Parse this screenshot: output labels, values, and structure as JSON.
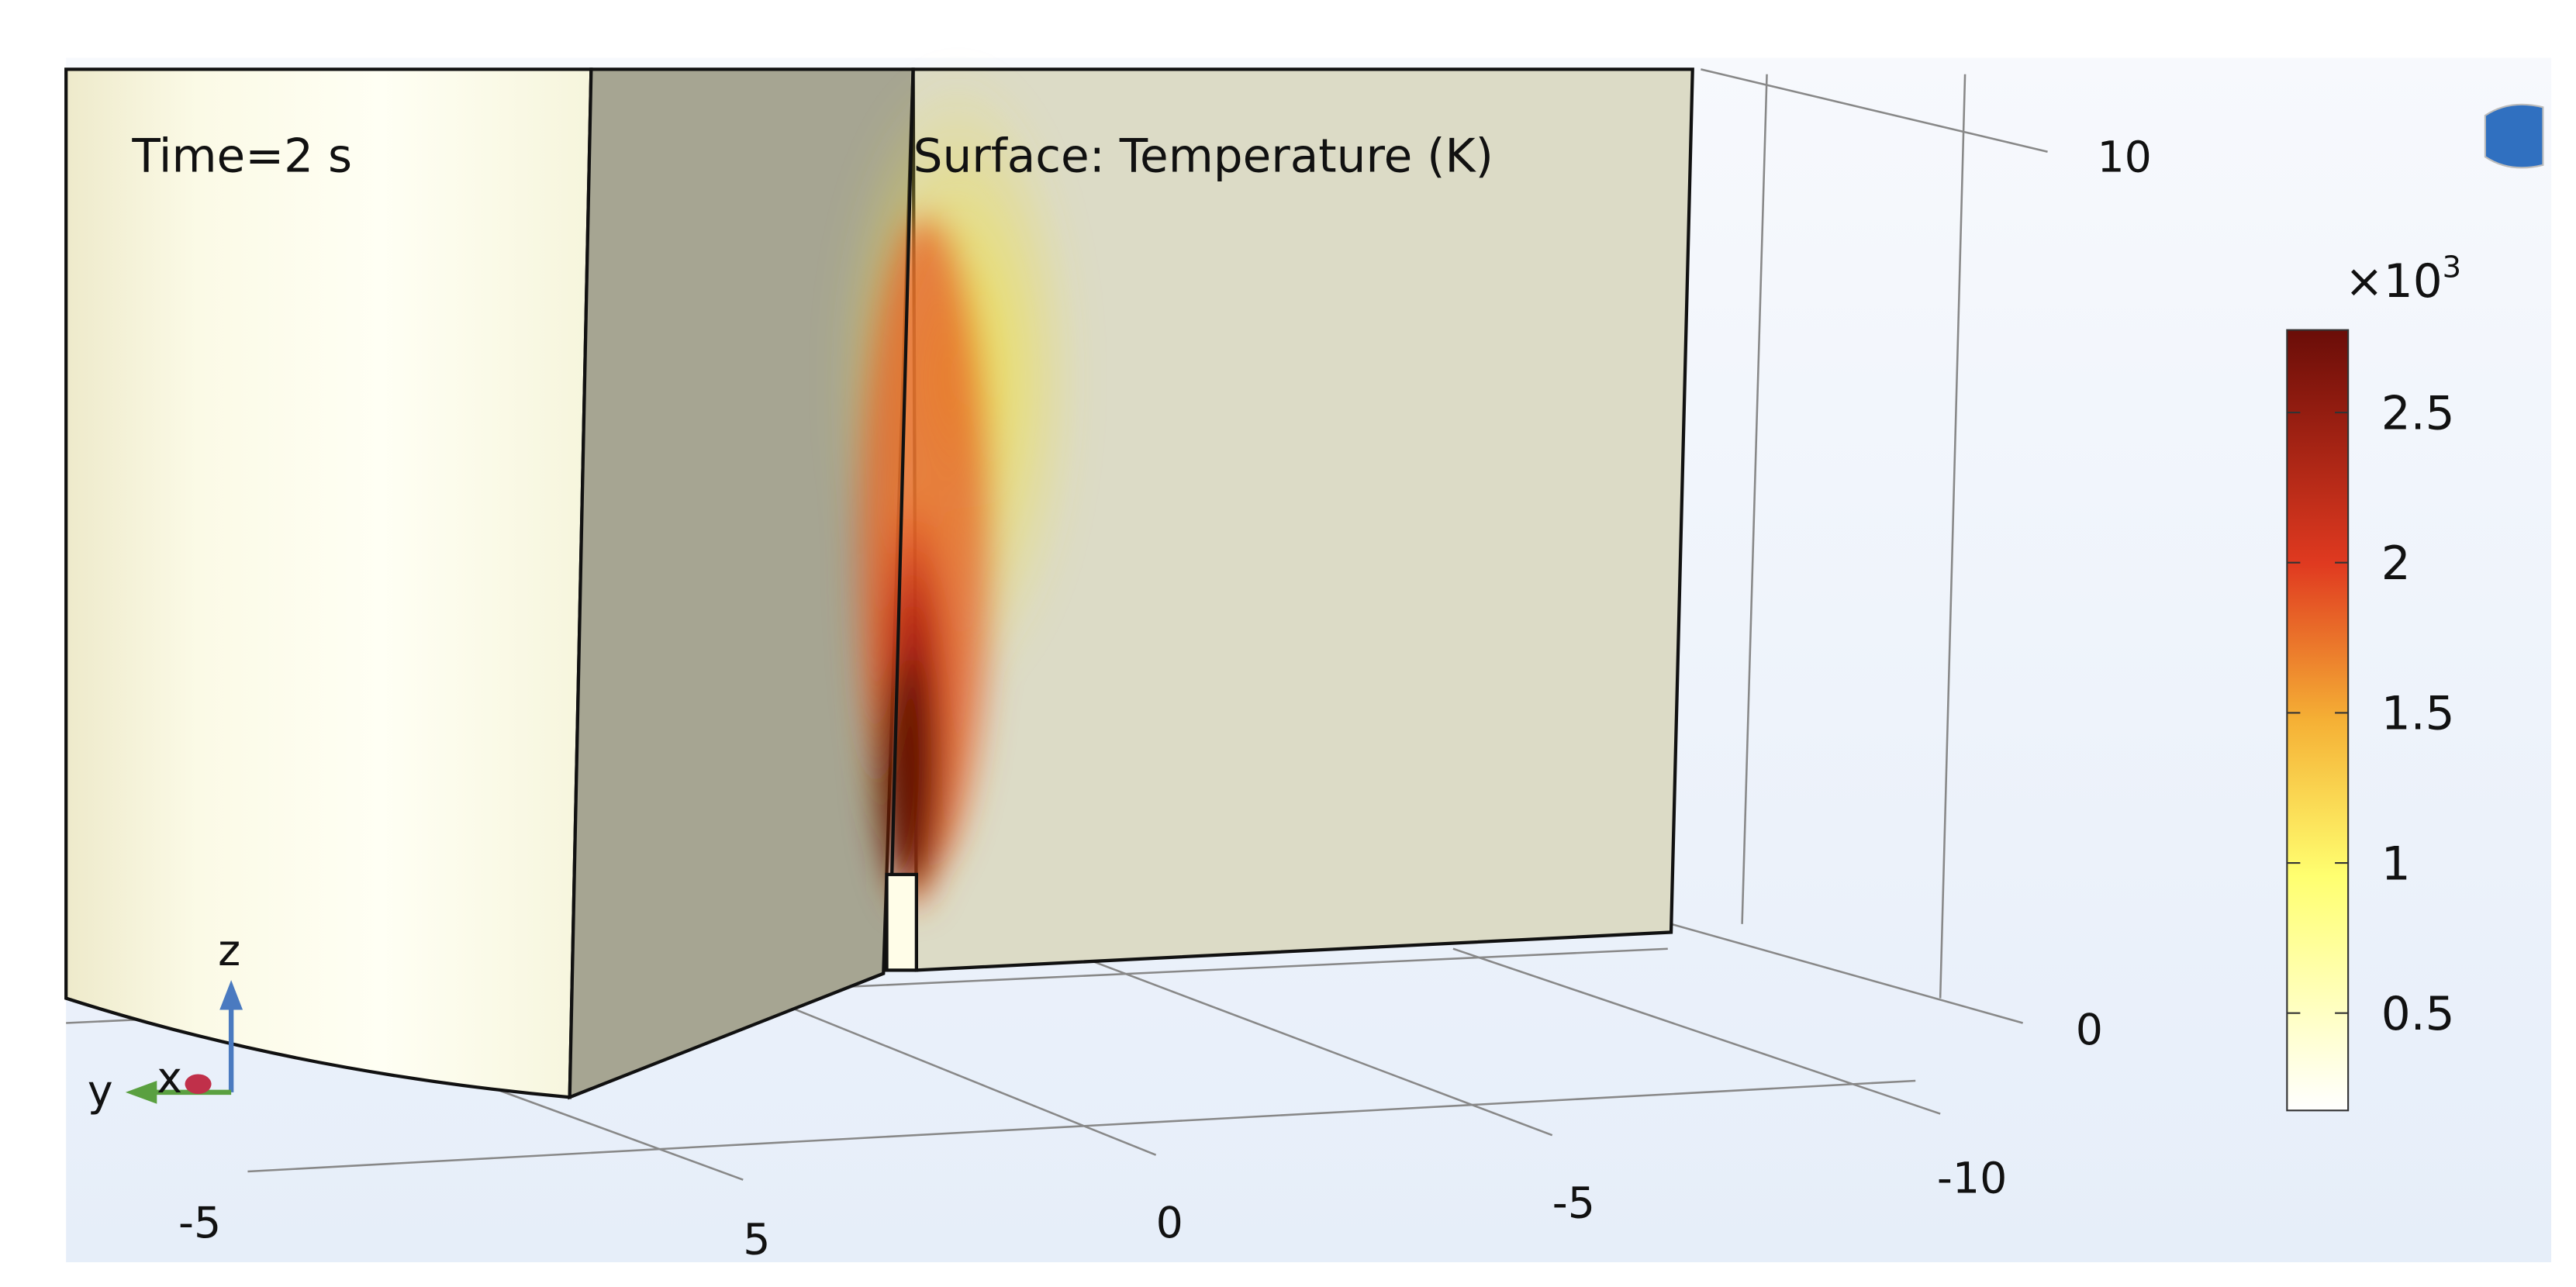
{
  "annotations": {
    "time": "Time=2 s",
    "expression": "Surface: Temperature (K)"
  },
  "colorbar": {
    "multiplier": "×10",
    "exponent": "3",
    "ticks": [
      "2.5",
      "2",
      "1.5",
      "1",
      "0.5"
    ]
  },
  "axes": {
    "z_ticks": [
      "10",
      "0"
    ],
    "x_ticks": [
      "-10",
      "-5",
      "0",
      "5",
      "-5"
    ]
  },
  "triad": {
    "x": "x",
    "y": "y",
    "z": "z"
  }
}
